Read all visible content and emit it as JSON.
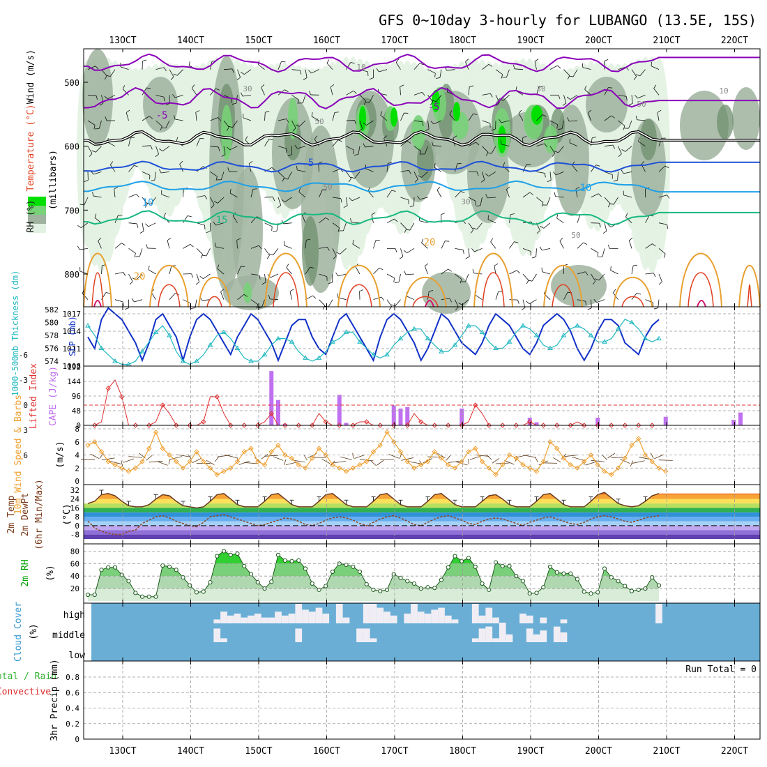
{
  "title": "GFS 0~10day 3-hourly for LUBANGO (13.5E, 15S)",
  "x_ticks": [
    "13OCT",
    "14OCT",
    "15OCT",
    "16OCT",
    "17OCT",
    "18OCT",
    "19OCT",
    "20OCT",
    "21OCT",
    "22OCT"
  ],
  "colors": {
    "rh_green_dark": "#00e000",
    "rh_green": "#78d278",
    "rh_gray": "#6f8f6f",
    "rh_light": "#e2f2e2",
    "temp_purple": "#8a00b8",
    "temp_black": "#000000",
    "temp_blue": "#1e50d8",
    "temp_cyan": "#1ea0e8",
    "temp_teal": "#18b880",
    "temp_orange": "#e8a030",
    "temp_red": "#e04020",
    "temp_magenta": "#d0106a",
    "slp": "#1030c8",
    "thickness": "#20b8c0",
    "li": "#e03030",
    "cape": "#c070f0",
    "wind": "#f0a030",
    "cloud_bg": "#6aaed6",
    "cloud_fill": "#f0eef4"
  },
  "panels": {
    "sounding": {
      "ylabel_rh": "RH (%)",
      "ylabel_temp": "Temperature (°C)",
      "ylabel_wind": "Wind (m/s)",
      "ylabel_units": "(millibars)",
      "y_ticks": [
        "500",
        "600",
        "700",
        "800"
      ],
      "contour_labels": {
        "t_m5a": "-5",
        "t_m5b": "-5",
        "t_5": "5",
        "t_10a": "10",
        "t_10b": "10",
        "t_15": "15",
        "t_20a": "20",
        "t_20b": "20",
        "rh_10": "10",
        "rh_30a": "30",
        "rh_30b": "30",
        "rh_30c": "30",
        "rh_50a": "50",
        "rh_50b": "50",
        "rh_50c": "50",
        "rh_50d": "50",
        "rh_10b": "10"
      }
    },
    "slp": {
      "ylabel_left": "1000-500mb Thickness (dm)",
      "ylabel_right": "SLP (mb)",
      "left_ticks": [
        "582",
        "580",
        "578",
        "576",
        "574"
      ],
      "right_ticks": [
        "1017",
        "1014",
        "1011",
        "1008"
      ]
    },
    "cape": {
      "ylabel_left": "Lifted Index",
      "ylabel_right": "CAPE (J/kg)",
      "left_ticks": [
        "-6",
        "-3",
        "0",
        "3",
        "6"
      ],
      "right_ticks": [
        "192",
        "144",
        "96",
        "48",
        "0"
      ]
    },
    "wind": {
      "ylabel": "10m Wind Speed & Barbs",
      "units": "(m/s)",
      "y_ticks": [
        "8",
        "6",
        "4",
        "2",
        "0"
      ]
    },
    "temp2m": {
      "ylabel_a": "2m Temp",
      "ylabel_b": "2m DewPt",
      "ylabel_c": "(6hr Min/Max)",
      "units": "(°C)",
      "y_ticks": [
        "32",
        "24",
        "16",
        "8",
        "0",
        "-8"
      ]
    },
    "rh2m": {
      "ylabel": "2m RH",
      "units": "(%)",
      "y_ticks": [
        "80",
        "60",
        "40",
        "20"
      ]
    },
    "cloud": {
      "ylabel": "Cloud Cover",
      "units": "(%)",
      "levels": [
        "high",
        "middle",
        "low"
      ]
    },
    "precip": {
      "ylabel_a": "Total / Rain",
      "ylabel_b": "Convective",
      "ylabel_c": "3hr Precip (mm)",
      "y_ticks": [
        "0.8",
        "0.6",
        "0.4",
        "0.2",
        "0"
      ],
      "run_total": "Run Total = 0"
    }
  },
  "chart_data": [
    {
      "type": "line",
      "name": "sea-level pressure and thickness",
      "series": [
        {
          "name": "SLP (mb)",
          "values": [
            1013,
            1011,
            1016,
            1018,
            1017,
            1016,
            1014,
            1012,
            1009,
            1012,
            1016,
            1017,
            1015,
            1013,
            1009,
            1013,
            1016,
            1017,
            1016,
            1014,
            1012,
            1010,
            1013,
            1015,
            1017,
            1016,
            1014,
            1012,
            1009,
            1012,
            1015,
            1016,
            1016,
            1013,
            1011,
            1010,
            1013,
            1016,
            1017,
            1015,
            1013,
            1011,
            1009,
            1013,
            1016,
            1017,
            1016,
            1014,
            1012,
            1009,
            1011,
            1014,
            1017,
            1016,
            1014,
            1012,
            1011,
            1010,
            1012,
            1015,
            1017,
            1016,
            1015,
            1013,
            1011,
            1010,
            1012,
            1015,
            1016,
            1017,
            1016,
            1014,
            1011,
            1009,
            1011,
            1014,
            1016,
            1016,
            1015,
            1012,
            1011,
            1010,
            1013,
            1015,
            1016
          ]
        },
        {
          "name": "1000-500mb Thickness (dm)",
          "values": [
            579.5,
            578.0,
            576.0,
            575.0,
            574.0,
            573.5,
            573.5,
            574.0,
            575.5,
            577.0,
            578.5,
            579.5,
            578.0,
            575.5,
            574.0,
            573.5,
            574.0,
            575.0,
            576.5,
            578.0,
            578.5,
            577.5,
            576.0,
            574.5,
            574.0,
            574.0,
            575.0,
            576.5,
            577.5,
            577.5,
            577.0,
            575.5,
            574.5,
            574.0,
            574.5,
            575.5,
            577.0,
            577.5,
            578.5,
            578.5,
            577.0,
            576.0,
            575.0,
            574.5,
            575.0,
            576.5,
            577.5,
            578.5,
            579.0,
            579.0,
            577.5,
            576.5,
            575.5,
            575.5,
            576.5,
            578.0,
            579.5,
            579.5,
            578.5,
            577.0,
            576.0,
            576.0,
            577.0,
            578.5,
            579.5,
            579.0,
            578.0,
            576.5,
            576.0,
            576.5,
            578.0,
            579.0,
            579.5,
            579.0,
            578.0,
            577.0,
            577.0,
            577.5,
            579.0,
            580.5,
            580.0,
            579.0,
            577.5,
            577.0,
            577.5
          ]
        }
      ]
    },
    {
      "type": "bar",
      "name": "CAPE and lifted index",
      "cape_bars": [
        {
          "x": 27,
          "v": 178
        },
        {
          "x": 28,
          "v": 83
        },
        {
          "x": 29,
          "v": 5
        },
        {
          "x": 37,
          "v": 100
        },
        {
          "x": 38,
          "v": 8
        },
        {
          "x": 45,
          "v": 65
        },
        {
          "x": 46,
          "v": 55
        },
        {
          "x": 47,
          "v": 60
        },
        {
          "x": 55,
          "v": 55
        },
        {
          "x": 65,
          "v": 25
        },
        {
          "x": 66,
          "v": 10
        },
        {
          "x": 75,
          "v": 25
        },
        {
          "x": 85,
          "v": 28
        },
        {
          "x": 95,
          "v": 18
        },
        {
          "x": 96,
          "v": 42
        }
      ],
      "lifted_index": [
        6,
        5,
        2,
        -2,
        -3,
        -1,
        3,
        6,
        6,
        4,
        2,
        0,
        1,
        4,
        6,
        6,
        4,
        2,
        -1,
        -1,
        1,
        3,
        4,
        5,
        6,
        4,
        2,
        1,
        3,
        4,
        5,
        6,
        5,
        3,
        1,
        2,
        4,
        5,
        4,
        3,
        2,
        2,
        3,
        4,
        6,
        6,
        5,
        3,
        1,
        2,
        3,
        4,
        5,
        6,
        6,
        4,
        2,
        0,
        1,
        3,
        4,
        6,
        6,
        5,
        3,
        2,
        3,
        4,
        6,
        6,
        5,
        3,
        2,
        3,
        4,
        6,
        6,
        6,
        5,
        4,
        3,
        4,
        5,
        6,
        6
      ]
    },
    {
      "type": "line",
      "name": "10m wind speed (m/s)",
      "values": [
        5.5,
        6,
        4.5,
        3,
        2.5,
        2,
        1.5,
        2,
        3,
        5,
        7.5,
        5,
        4,
        3,
        2,
        3,
        4.5,
        3,
        2,
        1,
        1.5,
        2,
        3,
        4.5,
        5,
        3,
        2.5,
        4.5,
        5.5,
        4,
        3.5,
        2.5,
        2,
        3.5,
        5,
        4,
        2.5,
        2,
        1.5,
        2,
        2.5,
        3,
        4.5,
        5.5,
        7.5,
        6,
        4.5,
        3,
        2,
        2.5,
        3,
        4.5,
        3.5,
        2.5,
        2,
        3,
        4.5,
        5,
        3,
        2,
        1,
        2.5,
        4,
        3.5,
        2.5,
        2,
        1.5,
        3,
        6,
        5,
        3.5,
        2.5,
        2,
        3,
        4,
        2.5,
        1.5,
        1,
        2,
        3.5,
        5.5,
        6.5,
        4,
        3,
        2,
        1.5
      ]
    },
    {
      "type": "line",
      "name": "2m temperature and dewpoint (°C)",
      "series": [
        {
          "name": "2m Temp",
          "values": [
            20,
            22,
            28,
            29,
            27,
            22,
            18,
            17,
            17,
            19,
            24,
            28,
            27,
            22,
            18,
            17,
            16,
            17,
            22,
            28,
            29,
            24,
            19,
            17,
            17,
            17,
            22,
            28,
            29,
            24,
            19,
            17,
            17,
            17,
            22,
            28,
            29,
            24,
            19,
            17,
            17,
            17,
            22,
            28,
            29,
            24,
            19,
            17,
            17,
            17,
            22,
            28,
            29,
            24,
            19,
            17,
            17,
            17,
            22,
            27,
            28,
            24,
            19,
            17,
            17,
            17,
            22,
            28,
            29,
            24,
            19,
            17,
            17,
            17,
            22,
            28,
            30,
            25,
            20,
            18,
            17,
            18,
            22,
            27,
            29
          ]
        },
        {
          "name": "2m DewPt",
          "values": [
            4,
            -2,
            -5,
            -7,
            -8,
            -8,
            -5,
            -4,
            2,
            5,
            8,
            9,
            7,
            4,
            2,
            0,
            -1,
            3,
            8,
            9,
            10,
            8,
            6,
            4,
            2,
            0,
            1,
            3,
            5,
            7,
            6,
            4,
            1,
            0,
            2,
            5,
            7,
            8,
            7,
            5,
            2,
            0,
            3,
            6,
            8,
            9,
            7,
            4,
            1,
            0,
            3,
            6,
            8,
            9,
            7,
            5,
            2,
            1,
            4,
            6,
            7,
            6,
            4,
            2,
            0,
            3,
            5,
            7,
            8,
            6,
            4,
            2,
            1,
            3,
            6,
            8,
            9,
            8,
            6,
            4,
            3,
            5,
            7,
            8,
            9
          ]
        }
      ]
    },
    {
      "type": "area",
      "name": "2m relative humidity (%)",
      "values": [
        10,
        10,
        50,
        54,
        54,
        42,
        32,
        13,
        7,
        7,
        7,
        57,
        55,
        50,
        38,
        25,
        14,
        15,
        30,
        72,
        80,
        74,
        76,
        56,
        43,
        30,
        20,
        31,
        74,
        65,
        64,
        65,
        52,
        28,
        18,
        24,
        47,
        60,
        58,
        55,
        47,
        27,
        18,
        16,
        18,
        43,
        37,
        32,
        28,
        20,
        22,
        21,
        34,
        54,
        72,
        64,
        69,
        55,
        28,
        18,
        62,
        56,
        56,
        40,
        32,
        12,
        13,
        22,
        55,
        46,
        44,
        44,
        35,
        15,
        12,
        14,
        52,
        38,
        32,
        24,
        16,
        18,
        20,
        38,
        25
      ]
    },
    {
      "type": "heatmap",
      "name": "cloud cover (%)",
      "high": [
        0,
        0,
        0,
        0,
        0,
        0,
        0,
        0,
        0,
        0,
        0,
        0,
        0,
        0,
        0,
        0,
        0,
        0,
        0,
        20,
        60,
        40,
        50,
        30,
        40,
        50,
        30,
        30,
        60,
        40,
        50,
        100,
        70,
        60,
        80,
        50,
        0,
        100,
        30,
        0,
        0,
        100,
        100,
        80,
        60,
        40,
        0,
        50,
        100,
        60,
        50,
        70,
        80,
        40,
        20,
        0,
        0,
        100,
        40,
        80,
        30,
        0,
        0,
        0,
        50,
        40,
        0,
        30,
        0,
        0,
        20,
        0,
        0,
        0,
        0,
        0,
        0,
        0,
        0,
        0,
        0,
        0,
        0,
        0,
        100
      ],
      "middle": [
        0,
        0,
        0,
        0,
        0,
        0,
        0,
        0,
        0,
        0,
        0,
        0,
        0,
        0,
        0,
        0,
        0,
        0,
        0,
        70,
        20,
        0,
        0,
        0,
        0,
        0,
        0,
        0,
        0,
        0,
        0,
        70,
        0,
        0,
        0,
        0,
        0,
        0,
        0,
        0,
        70,
        70,
        20,
        0,
        0,
        0,
        0,
        0,
        0,
        0,
        0,
        0,
        0,
        0,
        0,
        0,
        0,
        20,
        70,
        80,
        20,
        100,
        40,
        0,
        0,
        70,
        40,
        60,
        0,
        80,
        50,
        0,
        0,
        0,
        0,
        0,
        0,
        0,
        0,
        0,
        0,
        0,
        0,
        0,
        0
      ],
      "low": [
        0,
        0,
        0,
        0,
        0,
        0,
        0,
        0,
        0,
        0,
        0,
        0,
        0,
        0,
        0,
        0,
        0,
        0,
        0,
        0,
        0,
        0,
        0,
        0,
        0,
        0,
        0,
        0,
        0,
        0,
        0,
        0,
        0,
        0,
        0,
        0,
        0,
        0,
        0,
        0,
        0,
        0,
        0,
        0,
        0,
        0,
        0,
        0,
        0,
        0,
        0,
        0,
        0,
        0,
        0,
        0,
        0,
        0,
        0,
        0,
        0,
        0,
        0,
        0,
        0,
        0,
        0,
        0,
        0,
        0,
        0,
        0,
        0,
        0,
        0,
        0,
        0,
        0,
        0,
        0,
        0,
        0,
        0,
        0,
        0
      ]
    },
    {
      "type": "bar",
      "name": "3hr precipitation (mm)",
      "values": [
        0,
        0,
        0,
        0,
        0,
        0,
        0,
        0,
        0,
        0,
        0,
        0,
        0,
        0,
        0,
        0,
        0,
        0,
        0,
        0,
        0,
        0,
        0,
        0,
        0,
        0,
        0,
        0,
        0,
        0,
        0,
        0,
        0,
        0,
        0,
        0,
        0,
        0,
        0,
        0,
        0,
        0,
        0,
        0,
        0,
        0,
        0,
        0,
        0,
        0,
        0,
        0,
        0,
        0,
        0,
        0,
        0,
        0,
        0,
        0,
        0,
        0,
        0,
        0,
        0,
        0,
        0,
        0,
        0,
        0,
        0,
        0,
        0,
        0,
        0,
        0,
        0,
        0,
        0,
        0,
        0,
        0,
        0,
        0,
        0
      ],
      "ylim": [
        0,
        0.9
      ]
    }
  ]
}
